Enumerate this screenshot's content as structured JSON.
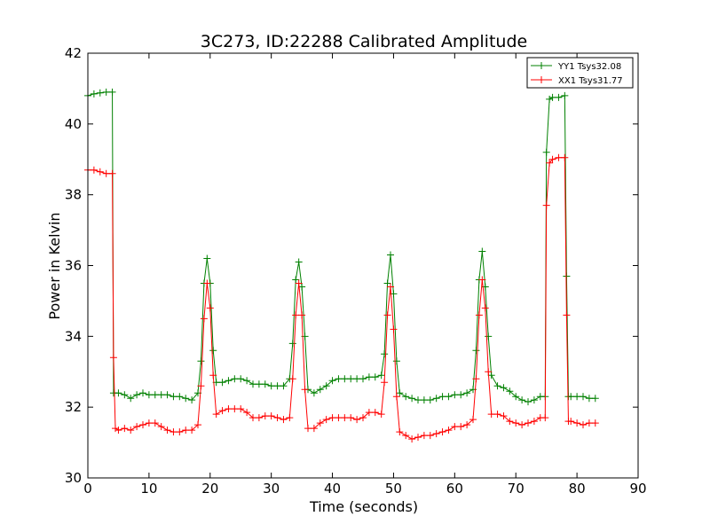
{
  "chart_data": {
    "type": "line",
    "title": "3C273, ID:22288 Calibrated Amplitude",
    "xlabel": "Time (seconds)",
    "ylabel": "Power in Kelvin",
    "xlim": [
      0,
      90
    ],
    "ylim": [
      30,
      42
    ],
    "xticks": [
      "0",
      "10",
      "20",
      "30",
      "40",
      "50",
      "60",
      "70",
      "80",
      "90"
    ],
    "yticks": [
      "30",
      "32",
      "34",
      "36",
      "38",
      "40",
      "42"
    ],
    "grid": false,
    "legend_position": "top-right",
    "marker": "+",
    "series": [
      {
        "name": "YY1 Tsys32.08",
        "color": "#008000",
        "points": [
          [
            0,
            40.8
          ],
          [
            1,
            40.85
          ],
          [
            2,
            40.88
          ],
          [
            3,
            40.9
          ],
          [
            4,
            40.9
          ],
          [
            4.2,
            32.4
          ],
          [
            5,
            32.4
          ],
          [
            6,
            32.35
          ],
          [
            7,
            32.25
          ],
          [
            8,
            32.35
          ],
          [
            9,
            32.4
          ],
          [
            10,
            32.35
          ],
          [
            11,
            32.35
          ],
          [
            12,
            32.35
          ],
          [
            13,
            32.35
          ],
          [
            14,
            32.3
          ],
          [
            15,
            32.3
          ],
          [
            16,
            32.25
          ],
          [
            17,
            32.2
          ],
          [
            18,
            32.4
          ],
          [
            18.5,
            33.3
          ],
          [
            19,
            35.5
          ],
          [
            19.5,
            36.2
          ],
          [
            20,
            35.5
          ],
          [
            20.5,
            33.6
          ],
          [
            21,
            32.7
          ],
          [
            22,
            32.7
          ],
          [
            23,
            32.75
          ],
          [
            24,
            32.8
          ],
          [
            25,
            32.8
          ],
          [
            26,
            32.75
          ],
          [
            27,
            32.65
          ],
          [
            28,
            32.65
          ],
          [
            29,
            32.65
          ],
          [
            30,
            32.6
          ],
          [
            31,
            32.6
          ],
          [
            32,
            32.6
          ],
          [
            33,
            32.8
          ],
          [
            33.5,
            33.8
          ],
          [
            34,
            35.6
          ],
          [
            34.5,
            36.1
          ],
          [
            35,
            35.4
          ],
          [
            35.5,
            34.0
          ],
          [
            36,
            32.5
          ],
          [
            37,
            32.4
          ],
          [
            38,
            32.5
          ],
          [
            39,
            32.6
          ],
          [
            40,
            32.75
          ],
          [
            41,
            32.8
          ],
          [
            42,
            32.8
          ],
          [
            43,
            32.8
          ],
          [
            44,
            32.8
          ],
          [
            45,
            32.8
          ],
          [
            46,
            32.85
          ],
          [
            47,
            32.85
          ],
          [
            48,
            32.9
          ],
          [
            48.5,
            33.5
          ],
          [
            49,
            35.5
          ],
          [
            49.5,
            36.3
          ],
          [
            50,
            35.2
          ],
          [
            50.5,
            33.3
          ],
          [
            51,
            32.4
          ],
          [
            52,
            32.3
          ],
          [
            53,
            32.25
          ],
          [
            54,
            32.2
          ],
          [
            55,
            32.2
          ],
          [
            56,
            32.2
          ],
          [
            57,
            32.25
          ],
          [
            58,
            32.3
          ],
          [
            59,
            32.3
          ],
          [
            60,
            32.35
          ],
          [
            61,
            32.35
          ],
          [
            62,
            32.4
          ],
          [
            63,
            32.5
          ],
          [
            63.5,
            33.6
          ],
          [
            64,
            35.6
          ],
          [
            64.5,
            36.4
          ],
          [
            65,
            35.4
          ],
          [
            65.5,
            34.0
          ],
          [
            66,
            32.9
          ],
          [
            67,
            32.6
          ],
          [
            68,
            32.55
          ],
          [
            69,
            32.45
          ],
          [
            70,
            32.3
          ],
          [
            71,
            32.2
          ],
          [
            72,
            32.15
          ],
          [
            73,
            32.2
          ],
          [
            74,
            32.3
          ],
          [
            74.8,
            32.3
          ],
          [
            75,
            39.2
          ],
          [
            75.5,
            40.7
          ],
          [
            76,
            40.75
          ],
          [
            77,
            40.75
          ],
          [
            78,
            40.8
          ],
          [
            78.3,
            35.7
          ],
          [
            78.6,
            32.3
          ],
          [
            79,
            32.3
          ],
          [
            80,
            32.3
          ],
          [
            81,
            32.3
          ],
          [
            82,
            32.25
          ],
          [
            83,
            32.25
          ]
        ]
      },
      {
        "name": "XX1 Tsys31.77",
        "color": "#ff0000",
        "points": [
          [
            0,
            38.7
          ],
          [
            1,
            38.7
          ],
          [
            2,
            38.65
          ],
          [
            3,
            38.6
          ],
          [
            4,
            38.6
          ],
          [
            4.2,
            33.4
          ],
          [
            4.5,
            31.4
          ],
          [
            5,
            31.35
          ],
          [
            6,
            31.4
          ],
          [
            7,
            31.35
          ],
          [
            8,
            31.45
          ],
          [
            9,
            31.5
          ],
          [
            10,
            31.55
          ],
          [
            11,
            31.55
          ],
          [
            12,
            31.45
          ],
          [
            13,
            31.35
          ],
          [
            14,
            31.3
          ],
          [
            15,
            31.3
          ],
          [
            16,
            31.35
          ],
          [
            17,
            31.35
          ],
          [
            18,
            31.5
          ],
          [
            18.5,
            32.6
          ],
          [
            19,
            34.5
          ],
          [
            19.5,
            35.5
          ],
          [
            20,
            34.8
          ],
          [
            20.5,
            32.9
          ],
          [
            21,
            31.8
          ],
          [
            22,
            31.9
          ],
          [
            23,
            31.95
          ],
          [
            24,
            31.95
          ],
          [
            25,
            31.95
          ],
          [
            26,
            31.85
          ],
          [
            27,
            31.7
          ],
          [
            28,
            31.7
          ],
          [
            29,
            31.75
          ],
          [
            30,
            31.75
          ],
          [
            31,
            31.7
          ],
          [
            32,
            31.65
          ],
          [
            33,
            31.7
          ],
          [
            33.5,
            32.8
          ],
          [
            34,
            34.6
          ],
          [
            34.5,
            35.5
          ],
          [
            35,
            34.6
          ],
          [
            35.5,
            32.5
          ],
          [
            36,
            31.4
          ],
          [
            37,
            31.4
          ],
          [
            38,
            31.55
          ],
          [
            39,
            31.65
          ],
          [
            40,
            31.7
          ],
          [
            41,
            31.7
          ],
          [
            42,
            31.7
          ],
          [
            43,
            31.7
          ],
          [
            44,
            31.65
          ],
          [
            45,
            31.7
          ],
          [
            46,
            31.85
          ],
          [
            47,
            31.85
          ],
          [
            48,
            31.8
          ],
          [
            48.5,
            32.7
          ],
          [
            49,
            34.6
          ],
          [
            49.5,
            35.4
          ],
          [
            50,
            34.2
          ],
          [
            50.5,
            32.3
          ],
          [
            51,
            31.3
          ],
          [
            52,
            31.2
          ],
          [
            53,
            31.1
          ],
          [
            54,
            31.15
          ],
          [
            55,
            31.2
          ],
          [
            56,
            31.2
          ],
          [
            57,
            31.25
          ],
          [
            58,
            31.3
          ],
          [
            59,
            31.35
          ],
          [
            60,
            31.45
          ],
          [
            61,
            31.45
          ],
          [
            62,
            31.5
          ],
          [
            63,
            31.65
          ],
          [
            63.5,
            32.8
          ],
          [
            64,
            34.6
          ],
          [
            64.5,
            35.6
          ],
          [
            65,
            34.8
          ],
          [
            65.5,
            33.0
          ],
          [
            66,
            31.8
          ],
          [
            67,
            31.8
          ],
          [
            68,
            31.75
          ],
          [
            69,
            31.6
          ],
          [
            70,
            31.55
          ],
          [
            71,
            31.5
          ],
          [
            72,
            31.55
          ],
          [
            73,
            31.6
          ],
          [
            74,
            31.7
          ],
          [
            74.8,
            31.7
          ],
          [
            75,
            37.7
          ],
          [
            75.5,
            38.9
          ],
          [
            76,
            39.0
          ],
          [
            77,
            39.05
          ],
          [
            78,
            39.05
          ],
          [
            78.3,
            34.6
          ],
          [
            78.6,
            31.6
          ],
          [
            79,
            31.6
          ],
          [
            80,
            31.55
          ],
          [
            81,
            31.5
          ],
          [
            82,
            31.55
          ],
          [
            83,
            31.55
          ]
        ]
      }
    ]
  }
}
